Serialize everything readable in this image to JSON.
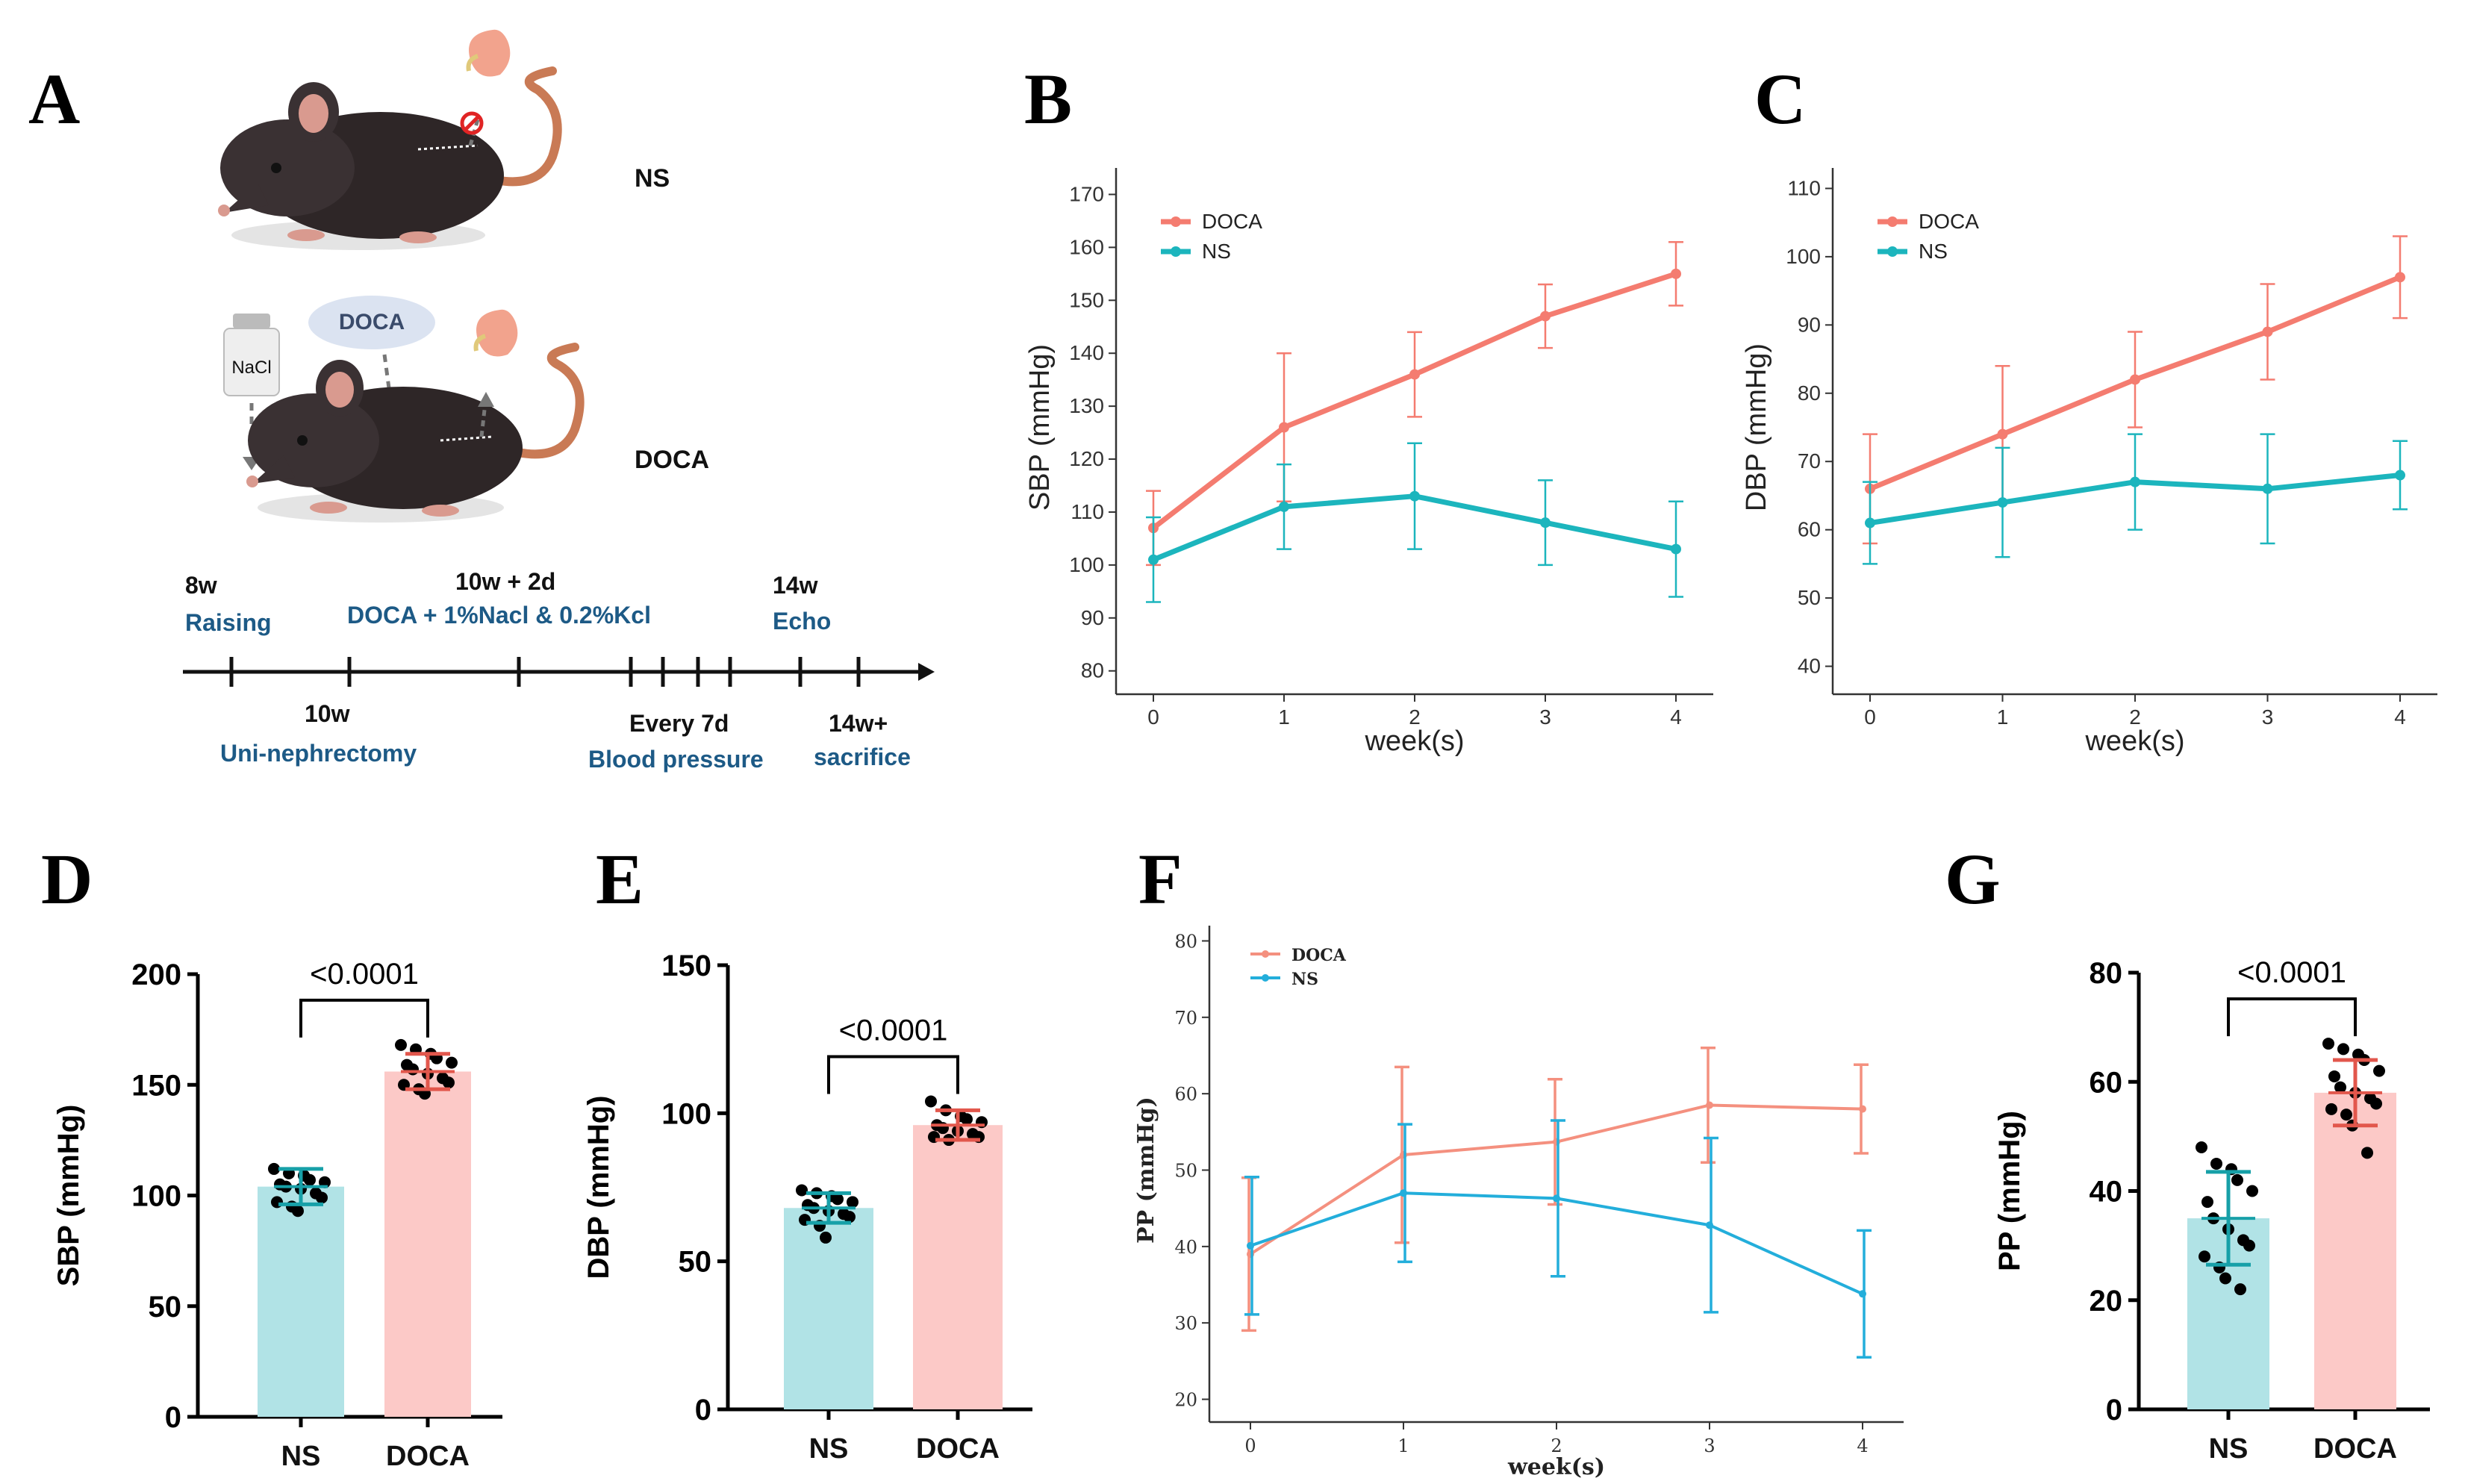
{
  "panel_labels": [
    "A",
    "B",
    "C",
    "D",
    "E",
    "F",
    "G"
  ],
  "colors": {
    "doca": "#f47c70",
    "ns": "#1cb5bd",
    "doca_f": "#f4907f",
    "ns_f": "#23aedb",
    "bar_doca": "#fcc9c7",
    "bar_ns": "#b1e3e6",
    "err_doca": "#e2574c",
    "err_ns": "#17a0a8"
  },
  "schematic": {
    "group_ns": "NS",
    "group_doca": "DOCA",
    "doca_pill": "DOCA",
    "nacl_bottle": "NaCl",
    "timeline": [
      {
        "top": "8w",
        "bottom": "Raising"
      },
      {
        "top": "10w + 2d",
        "bottom": "DOCA + 1%Nacl & 0.2%Kcl"
      },
      {
        "top": "14w",
        "bottom": "Echo"
      },
      {
        "top": "10w",
        "bottom": "Uni-nephrectomy"
      },
      {
        "top": "Every 7d",
        "bottom": "Blood pressure"
      },
      {
        "top": "14w+",
        "bottom": "sacrifice"
      }
    ]
  },
  "chart_data": [
    {
      "id": "B",
      "type": "line",
      "title": "",
      "xlabel": "week(s)",
      "ylabel": "SBP (mmHg)",
      "x": [
        0,
        1,
        2,
        3,
        4
      ],
      "xticks": [
        "0",
        "1",
        "2",
        "3",
        "4"
      ],
      "ylim": [
        77,
        175
      ],
      "yticks": [
        "80",
        "90",
        "100",
        "110",
        "120",
        "130",
        "140",
        "150",
        "160",
        "170"
      ],
      "legend": [
        "DOCA",
        "NS"
      ],
      "series": [
        {
          "name": "DOCA",
          "values": [
            107,
            126,
            136,
            147,
            155
          ],
          "err": [
            7,
            14,
            8,
            6,
            6
          ]
        },
        {
          "name": "NS",
          "values": [
            101,
            111,
            113,
            108,
            103
          ],
          "err": [
            8,
            8,
            10,
            8,
            9
          ]
        }
      ]
    },
    {
      "id": "C",
      "type": "line",
      "title": "",
      "xlabel": "week(s)",
      "ylabel": "DBP (mmHg)",
      "x": [
        0,
        1,
        2,
        3,
        4
      ],
      "xticks": [
        "0",
        "1",
        "2",
        "3",
        "4"
      ],
      "ylim": [
        37,
        113
      ],
      "yticks": [
        "40",
        "50",
        "60",
        "70",
        "80",
        "90",
        "100",
        "110"
      ],
      "legend": [
        "DOCA",
        "NS"
      ],
      "series": [
        {
          "name": "DOCA",
          "values": [
            66,
            74,
            82,
            89,
            97
          ],
          "err": [
            8,
            10,
            7,
            7,
            6
          ]
        },
        {
          "name": "NS",
          "values": [
            61,
            64,
            67,
            66,
            68
          ],
          "err": [
            6,
            8,
            7,
            8,
            5
          ]
        }
      ]
    },
    {
      "id": "D",
      "type": "bar",
      "xlabel": "",
      "ylabel": "SBP (mmHg)",
      "categories": [
        "NS",
        "DOCA"
      ],
      "ylim": [
        0,
        200
      ],
      "yticks": [
        "0",
        "50",
        "100",
        "150",
        "200"
      ],
      "values": [
        104,
        156
      ],
      "sd": [
        8,
        8
      ],
      "points": [
        [
          112,
          110,
          109,
          107,
          106,
          105,
          104,
          103,
          101,
          99,
          97,
          95,
          93
        ],
        [
          168,
          166,
          164,
          162,
          160,
          159,
          157,
          155,
          153,
          151,
          150,
          148,
          146
        ]
      ],
      "pvalue": "<0.0001"
    },
    {
      "id": "E",
      "type": "bar",
      "xlabel": "",
      "ylabel": "DBP (mmHg)",
      "categories": [
        "NS",
        "DOCA"
      ],
      "ylim": [
        0,
        150
      ],
      "yticks": [
        "0",
        "50",
        "100",
        "150"
      ],
      "values": [
        68,
        96
      ],
      "sd": [
        5,
        5
      ],
      "points": [
        [
          74,
          73,
          72,
          71,
          70,
          69,
          68,
          67,
          66,
          65,
          64,
          62,
          58
        ],
        [
          104,
          101,
          99,
          98,
          97,
          96,
          95,
          94,
          93,
          92,
          92,
          91
        ]
      ],
      "pvalue": "<0.0001"
    },
    {
      "id": "F",
      "type": "line",
      "title": "",
      "xlabel": "week(s)",
      "ylabel": "PP (mmHg)",
      "x": [
        0,
        1,
        2,
        3,
        4
      ],
      "xticks": [
        "0",
        "1",
        "2",
        "3",
        "4"
      ],
      "ylim": [
        18,
        82
      ],
      "yticks": [
        "20",
        "30",
        "40",
        "50",
        "60",
        "70",
        "80"
      ],
      "legend": [
        "DOCA",
        "NS"
      ],
      "series": [
        {
          "name": "DOCA",
          "values": [
            39,
            52,
            53.7,
            58.5,
            58
          ],
          "err": [
            10,
            11.5,
            8.2,
            7.5,
            5.8
          ]
        },
        {
          "name": "NS",
          "values": [
            40.1,
            47,
            46.3,
            42.8,
            33.8
          ],
          "err": [
            9,
            9,
            10.2,
            11.4,
            8.3
          ]
        }
      ]
    },
    {
      "id": "G",
      "type": "bar",
      "xlabel": "",
      "ylabel": "PP (mmHg)",
      "categories": [
        "NS",
        "DOCA"
      ],
      "ylim": [
        0,
        80
      ],
      "yticks": [
        "0",
        "20",
        "40",
        "60",
        "80"
      ],
      "values": [
        35,
        58
      ],
      "sd": [
        8.5,
        6
      ],
      "points": [
        [
          48,
          45,
          44,
          42,
          40,
          38,
          35,
          33,
          31,
          30,
          28,
          26,
          24,
          22
        ],
        [
          67,
          66,
          65,
          64,
          62,
          61,
          59,
          58,
          57,
          56,
          55,
          54,
          52,
          47
        ]
      ],
      "pvalue": "<0.0001"
    }
  ]
}
